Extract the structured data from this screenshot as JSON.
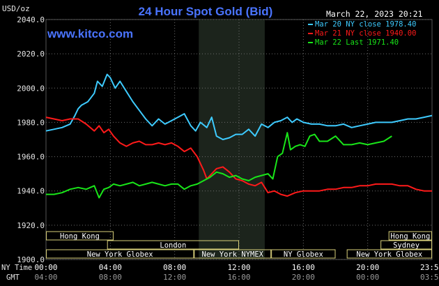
{
  "chart_data": {
    "type": "line",
    "title": "24 Hour Spot Gold (Bid)",
    "ylabel": "USD/oz",
    "website": "www.kitco.com",
    "date": "March 22, 2023 20:21",
    "ylim": [
      1900,
      2040
    ],
    "yticks": [
      "1900.0",
      "1920.0",
      "1940.0",
      "1960.0",
      "1980.0",
      "2000.0",
      "2020.0",
      "2040.0"
    ],
    "x_row_labels": [
      "NY Time",
      "GMT"
    ],
    "xticks_ny": [
      "00:00",
      "04:00",
      "08:00",
      "12:00",
      "16:00",
      "20:00",
      "23:59"
    ],
    "xticks_gmt": [
      "04:00",
      "08:00",
      "12:00",
      "16:00",
      "20:00",
      "00:00",
      "03:59"
    ],
    "x_hours": [
      0,
      4,
      8,
      12,
      16,
      20,
      23.98
    ],
    "highlight_hours": [
      9.5,
      13.6
    ],
    "sessions": [
      {
        "label": "Hong Kong",
        "start": 0.0,
        "end": 4.2,
        "row": 0
      },
      {
        "label": "London",
        "start": 3.8,
        "end": 12.0,
        "row": 1
      },
      {
        "label": "New York Globex",
        "start": 0.0,
        "end": 9.2,
        "row": 2
      },
      {
        "label": "New York NYMEX",
        "start": 9.2,
        "end": 14.0,
        "row": 2
      },
      {
        "label": "NY Globex",
        "start": 14.0,
        "end": 18.0,
        "row": 2
      },
      {
        "label": "Hong Kong",
        "start": 21.3,
        "end": 24.0,
        "row": 0
      },
      {
        "label": "Sydney",
        "start": 20.8,
        "end": 24.0,
        "row": 1
      },
      {
        "label": "New York Globex",
        "start": 18.7,
        "end": 24.0,
        "row": 2
      }
    ],
    "series": [
      {
        "name": "Mar 20 NY close 1978.40",
        "color": "#3ecbff",
        "x": [
          0,
          0.5,
          1.0,
          1.5,
          1.8,
          2.0,
          2.2,
          2.6,
          3.0,
          3.2,
          3.5,
          3.8,
          4.0,
          4.3,
          4.6,
          5.0,
          5.4,
          5.8,
          6.2,
          6.6,
          7.0,
          7.4,
          7.8,
          8.2,
          8.6,
          9.0,
          9.3,
          9.6,
          10.0,
          10.3,
          10.6,
          11.0,
          11.4,
          11.8,
          12.2,
          12.6,
          13.0,
          13.4,
          13.8,
          14.2,
          14.6,
          15.0,
          15.3,
          15.6,
          16.0,
          16.5,
          17.0,
          17.5,
          18.0,
          18.5,
          19.0,
          19.5,
          20.0,
          20.5,
          21.0,
          21.5,
          22.0,
          22.5,
          23.0,
          23.5,
          24.0
        ],
        "values": [
          1975,
          1976,
          1977,
          1979,
          1984,
          1988,
          1990,
          1992,
          1997,
          2004,
          2001,
          2008,
          2006,
          2000,
          2004,
          1998,
          1992,
          1987,
          1982,
          1978,
          1982,
          1979,
          1981,
          1983,
          1985,
          1978,
          1975,
          1980,
          1977,
          1983,
          1972,
          1970,
          1971,
          1973,
          1973,
          1976,
          1972,
          1979,
          1977,
          1980,
          1981,
          1983,
          1980,
          1982,
          1980,
          1979,
          1979,
          1978,
          1978,
          1979,
          1977,
          1978,
          1979,
          1980,
          1980,
          1980,
          1981,
          1982,
          1982,
          1983,
          1984
        ]
      },
      {
        "name": "Mar 21 NY close 1940.00",
        "color": "#ff1a1a",
        "x": [
          0,
          0.5,
          1.0,
          1.5,
          2.0,
          2.5,
          3.0,
          3.3,
          3.6,
          3.9,
          4.2,
          4.6,
          5.0,
          5.4,
          5.8,
          6.2,
          6.6,
          7.0,
          7.4,
          7.8,
          8.2,
          8.6,
          9.0,
          9.4,
          9.8,
          10.0,
          10.3,
          10.6,
          11.0,
          11.4,
          11.8,
          12.2,
          12.6,
          13.0,
          13.4,
          13.8,
          14.2,
          14.6,
          15.0,
          15.5,
          16.0,
          16.5,
          17.0,
          17.5,
          18.0,
          18.5,
          19.0,
          19.5,
          20.0,
          20.5,
          21.0,
          21.5,
          22.0,
          22.5,
          23.0,
          23.5,
          24.0
        ],
        "values": [
          1983,
          1982,
          1981,
          1982,
          1982,
          1979,
          1975,
          1978,
          1974,
          1976,
          1972,
          1968,
          1966,
          1968,
          1969,
          1967,
          1967,
          1968,
          1967,
          1968,
          1966,
          1963,
          1965,
          1960,
          1952,
          1947,
          1950,
          1953,
          1954,
          1951,
          1947,
          1946,
          1944,
          1943,
          1945,
          1939,
          1940,
          1938,
          1937,
          1939,
          1940,
          1940,
          1940,
          1941,
          1941,
          1942,
          1942,
          1943,
          1943,
          1944,
          1944,
          1944,
          1943,
          1943,
          1941,
          1940,
          1940
        ]
      },
      {
        "name": "Mar 22 Last 1971.40",
        "color": "#19e619",
        "x": [
          0,
          0.5,
          1.0,
          1.5,
          2.0,
          2.5,
          3.0,
          3.3,
          3.6,
          3.9,
          4.2,
          4.6,
          5.0,
          5.4,
          5.8,
          6.2,
          6.6,
          7.0,
          7.4,
          7.8,
          8.2,
          8.6,
          9.0,
          9.4,
          9.8,
          10.2,
          10.6,
          11.0,
          11.4,
          11.8,
          12.2,
          12.6,
          13.0,
          13.4,
          13.8,
          14.1,
          14.4,
          14.7,
          15.0,
          15.2,
          15.5,
          15.8,
          16.1,
          16.4,
          16.7,
          17.0,
          17.5,
          18.0,
          18.5,
          19.0,
          19.5,
          20.0,
          20.5,
          21.0,
          21.5
        ],
        "values": [
          1938,
          1938,
          1939,
          1941,
          1942,
          1941,
          1943,
          1936,
          1941,
          1942,
          1944,
          1943,
          1944,
          1945,
          1943,
          1944,
          1945,
          1944,
          1943,
          1944,
          1944,
          1941,
          1943,
          1944,
          1946,
          1948,
          1951,
          1950,
          1948,
          1949,
          1947,
          1946,
          1948,
          1949,
          1950,
          1947,
          1960,
          1962,
          1974,
          1964,
          1966,
          1967,
          1966,
          1972,
          1973,
          1969,
          1969,
          1972,
          1967,
          1967,
          1968,
          1967,
          1968,
          1969,
          1972
        ]
      }
    ]
  }
}
